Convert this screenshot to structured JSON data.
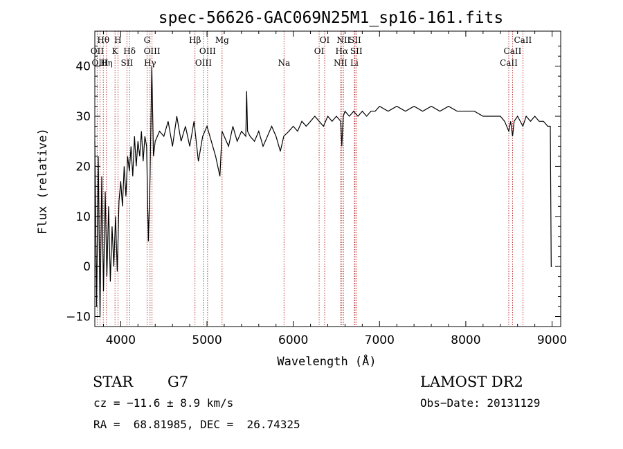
{
  "chart_data": {
    "type": "line",
    "title": "spec-56626-GAC069N25M1_sp16-161.fits",
    "xlabel": "Wavelength (Å)",
    "ylabel": "Flux (relative)",
    "xlim": [
      3700,
      9100
    ],
    "ylim": [
      -12,
      47
    ],
    "xticks": [
      4000,
      5000,
      6000,
      7000,
      8000,
      9000
    ],
    "yticks": [
      -10,
      0,
      10,
      20,
      30,
      40
    ],
    "line_color": "#000000",
    "marker_color": "#b22222",
    "series": [
      {
        "x": [
          3700,
          3720,
          3740,
          3760,
          3780,
          3800,
          3820,
          3840,
          3860,
          3880,
          3900,
          3920,
          3940,
          3960,
          3980,
          4000,
          4020,
          4040,
          4060,
          4080,
          4100,
          4120,
          4140,
          4160,
          4180,
          4200,
          4220,
          4240,
          4260,
          4280,
          4300,
          4320,
          4340,
          4360,
          4380,
          4400,
          4450,
          4500,
          4550,
          4600,
          4650,
          4700,
          4750,
          4800,
          4850,
          4900,
          4950,
          5000,
          5050,
          5100,
          5150,
          5175,
          5200,
          5250,
          5300,
          5350,
          5400,
          5450,
          5460,
          5470,
          5500,
          5550,
          5600,
          5650,
          5700,
          5750,
          5800,
          5850,
          5890,
          5950,
          6000,
          6050,
          6100,
          6150,
          6200,
          6250,
          6300,
          6350,
          6400,
          6450,
          6500,
          6550,
          6563,
          6580,
          6600,
          6650,
          6700,
          6750,
          6800,
          6850,
          6900,
          6950,
          7000,
          7100,
          7200,
          7300,
          7400,
          7500,
          7600,
          7700,
          7800,
          7900,
          8000,
          8100,
          8200,
          8300,
          8400,
          8450,
          8498,
          8520,
          8542,
          8560,
          8600,
          8662,
          8700,
          8750,
          8800,
          8850,
          8900,
          8950,
          8980,
          8990,
          9000
        ],
        "y": [
          25,
          -8,
          22,
          -10,
          18,
          -5,
          15,
          -2,
          12,
          -3,
          8,
          0,
          10,
          -1,
          13,
          17,
          12,
          20,
          14,
          22,
          19,
          24,
          18,
          26,
          20,
          25,
          22,
          27,
          21,
          26,
          24,
          5,
          18,
          40,
          22,
          25,
          27,
          26,
          29,
          24,
          30,
          25,
          28,
          24,
          29,
          21,
          26,
          28,
          25,
          22,
          18,
          27,
          26,
          24,
          28,
          25,
          27,
          26,
          35,
          27,
          26,
          25,
          27,
          24,
          26,
          28,
          26,
          23,
          26,
          27,
          28,
          27,
          29,
          28,
          29,
          30,
          29,
          28,
          30,
          29,
          30,
          29,
          24,
          30,
          31,
          30,
          31,
          30,
          31,
          30,
          31,
          31,
          32,
          31,
          32,
          31,
          32,
          31,
          32,
          31,
          32,
          31,
          31,
          31,
          30,
          30,
          30,
          29,
          27,
          29,
          26,
          29,
          30,
          28,
          30,
          29,
          30,
          29,
          29,
          28,
          28,
          0,
          0
        ]
      }
    ],
    "line_ids": [
      {
        "label": "Hθ",
        "wave": 3798,
        "row": 0
      },
      {
        "label": "OII",
        "wave": 3727,
        "row": 1
      },
      {
        "label": "OIII",
        "wave": 3760,
        "row": 2
      },
      {
        "label": "Hη",
        "wave": 3835,
        "row": 2
      },
      {
        "label": "H",
        "wave": 3968,
        "row": 0
      },
      {
        "label": "K",
        "wave": 3934,
        "row": 1
      },
      {
        "label": "Hδ",
        "wave": 4102,
        "row": 1
      },
      {
        "label": "SII",
        "wave": 4072,
        "row": 2
      },
      {
        "label": "G",
        "wave": 4305,
        "row": 0
      },
      {
        "label": "OIII",
        "wave": 4363,
        "row": 1
      },
      {
        "label": "Hγ",
        "wave": 4340,
        "row": 2
      },
      {
        "label": "Hβ",
        "wave": 4861,
        "row": 0
      },
      {
        "label": "OIII",
        "wave": 5007,
        "row": 1
      },
      {
        "label": "OIII",
        "wave": 4959,
        "row": 2
      },
      {
        "label": "Mg",
        "wave": 5175,
        "row": 0
      },
      {
        "label": "Na",
        "wave": 5893,
        "row": 2
      },
      {
        "label": "OI",
        "wave": 6364,
        "row": 0
      },
      {
        "label": "OI",
        "wave": 6300,
        "row": 1
      },
      {
        "label": "NII",
        "wave": 6583,
        "row": 0
      },
      {
        "label": "SII",
        "wave": 6716,
        "row": 0
      },
      {
        "label": "Hα",
        "wave": 6563,
        "row": 1
      },
      {
        "label": "SII",
        "wave": 6731,
        "row": 1
      },
      {
        "label": "NII",
        "wave": 6548,
        "row": 2
      },
      {
        "label": "Li",
        "wave": 6708,
        "row": 2
      },
      {
        "label": "CaII",
        "wave": 8662,
        "row": 0
      },
      {
        "label": "CaII",
        "wave": 8542,
        "row": 1
      },
      {
        "label": "CaII",
        "wave": 8498,
        "row": 2
      }
    ]
  },
  "info": {
    "object_class": "STAR",
    "subclass": "G7",
    "redshift": "cz = −11.6 ± 8.9 km/s",
    "coords": "RA =  68.81985, DEC =  26.74325",
    "survey": "LAMOST DR2",
    "obs_date": "Obs−Date: 20131129"
  }
}
